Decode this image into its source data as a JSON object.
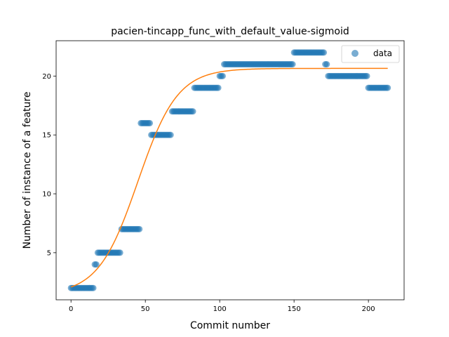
{
  "chart_data": {
    "type": "scatter",
    "title": "pacien-tincapp_func_with_default_value-sigmoid",
    "xlabel": "Commit number",
    "ylabel": "Number of instance of a feature",
    "xlim": [
      -10,
      224
    ],
    "ylim": [
      1.0,
      23.0
    ],
    "xticks": [
      0,
      50,
      100,
      150,
      200
    ],
    "yticks": [
      5,
      10,
      15,
      20
    ],
    "grid": false,
    "legend": {
      "position": "top-right",
      "entries": [
        "data"
      ]
    },
    "colors": {
      "points": "#1f77b4",
      "fit": "#ff7f0e"
    },
    "data_groups": [
      {
        "x_start": 0,
        "x_end": 15,
        "y": 2
      },
      {
        "x_start": 16,
        "x_end": 17,
        "y": 4
      },
      {
        "x_start": 18,
        "x_end": 33,
        "y": 5
      },
      {
        "x_start": 34,
        "x_end": 46,
        "y": 7
      },
      {
        "x_start": 47,
        "x_end": 53,
        "y": 16
      },
      {
        "x_start": 54,
        "x_end": 67,
        "y": 15
      },
      {
        "x_start": 68,
        "x_end": 82,
        "y": 17
      },
      {
        "x_start": 83,
        "x_end": 99,
        "y": 19
      },
      {
        "x_start": 100,
        "x_end": 102,
        "y": 20
      },
      {
        "x_start": 103,
        "x_end": 149,
        "y": 21
      },
      {
        "x_start": 150,
        "x_end": 170,
        "y": 22
      },
      {
        "x_start": 171,
        "x_end": 172,
        "y": 21
      },
      {
        "x_start": 173,
        "x_end": 199,
        "y": 20
      },
      {
        "x_start": 200,
        "x_end": 213,
        "y": 19
      }
    ],
    "fit": {
      "model": "sigmoid",
      "L": 19.2,
      "k": 0.075,
      "x0": 45,
      "b": 1.45,
      "x_range": [
        0,
        213
      ]
    }
  }
}
